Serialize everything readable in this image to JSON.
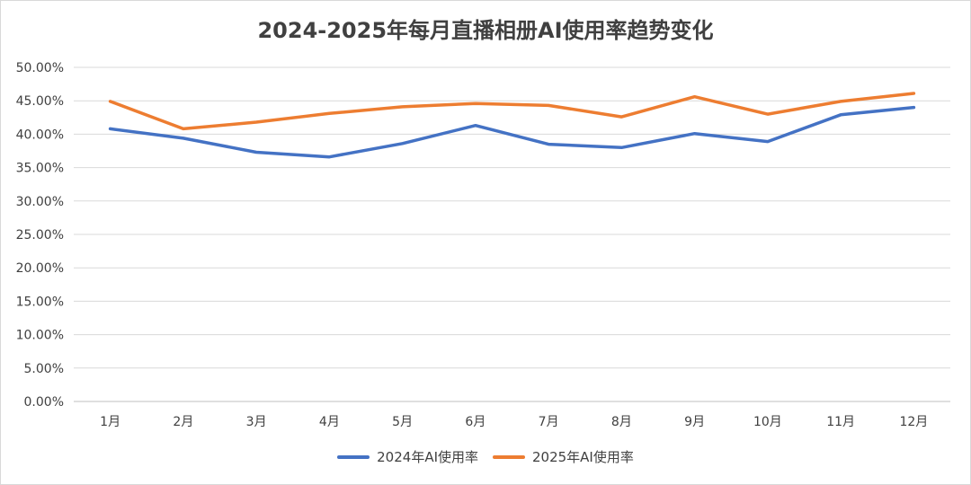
{
  "chart_data": {
    "type": "line",
    "title": "2024-2025年每月直播相册AI使用率趋势变化",
    "categories": [
      "1月",
      "2月",
      "3月",
      "4月",
      "5月",
      "6月",
      "7月",
      "8月",
      "9月",
      "10月",
      "11月",
      "12月"
    ],
    "y_ticks": [
      "0.00%",
      "5.00%",
      "10.00%",
      "15.00%",
      "20.00%",
      "25.00%",
      "30.00%",
      "35.00%",
      "40.00%",
      "45.00%",
      "50.00%"
    ],
    "ylim": [
      0,
      50
    ],
    "grid": true,
    "legend_position": "bottom",
    "series": [
      {
        "name": "2024年AI使用率",
        "color": "#4472c4",
        "values": [
          40.8,
          39.4,
          37.3,
          36.6,
          38.6,
          41.3,
          38.5,
          38.0,
          40.1,
          38.9,
          42.9,
          44.0
        ]
      },
      {
        "name": "2025年AI使用率",
        "color": "#ed7d31",
        "values": [
          44.9,
          40.8,
          41.8,
          43.1,
          44.1,
          44.6,
          44.3,
          42.6,
          45.6,
          43.0,
          44.9,
          46.1
        ]
      }
    ]
  }
}
